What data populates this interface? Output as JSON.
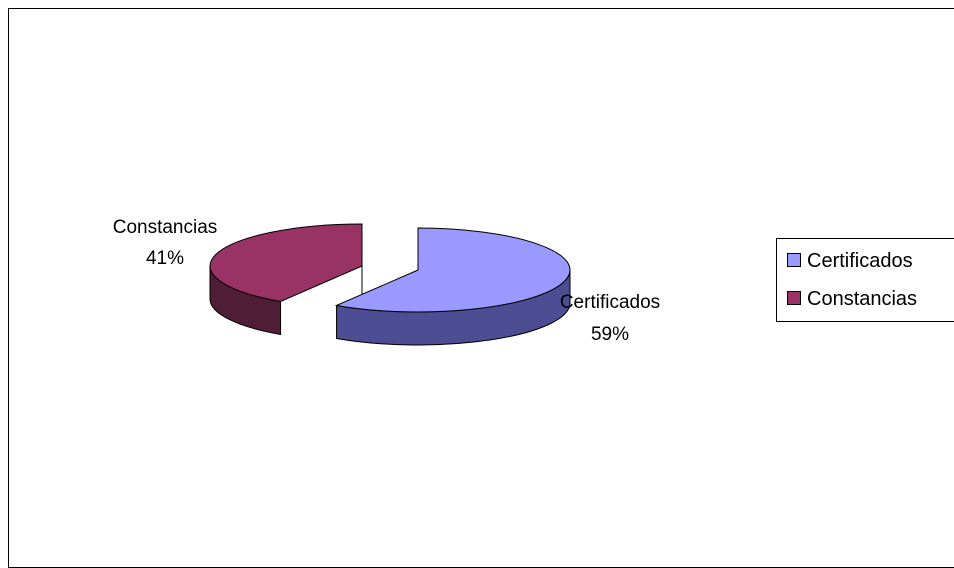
{
  "chart_data": {
    "type": "pie",
    "style": "3d-exploded",
    "series": [
      {
        "name": "Certificados",
        "value": 59,
        "label_name": "Certificados",
        "label_pct": "59%",
        "color": "#9999ff",
        "side_color": "#4d4d94"
      },
      {
        "name": "Constancias",
        "value": 41,
        "label_name": "Constancias",
        "label_pct": "41%",
        "color": "#993366",
        "side_color": "#4f1d35"
      }
    ],
    "legend": {
      "position": "right",
      "items": [
        "Certificados",
        "Constancias"
      ]
    }
  }
}
